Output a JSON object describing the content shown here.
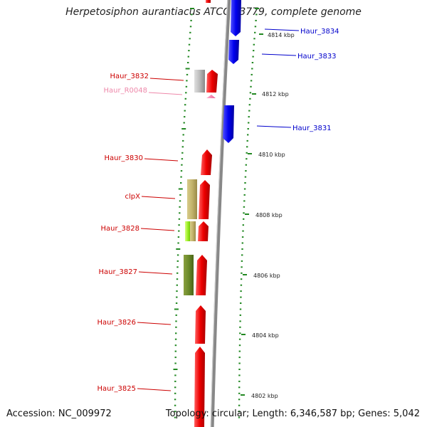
{
  "title": "Herpetosiphon aurantiacus ATCC 23779, complete genome",
  "footer": {
    "accession": "Accession: NC_009972",
    "topology": "Topology: circular; Length: 6,346,587 bp; Genes: 5,042"
  },
  "colors": {
    "forward": "#ee0000",
    "reverse": "#0000ee",
    "rna": "#ff88bb",
    "tick": "#228822",
    "backbone": "#888888"
  },
  "ticks": [
    {
      "label": "4814 kbp"
    },
    {
      "label": "4812 kbp"
    },
    {
      "label": "4810 kbp"
    },
    {
      "label": "4808 kbp"
    },
    {
      "label": "4806 kbp"
    },
    {
      "label": "4804 kbp"
    },
    {
      "label": "4802 kbp"
    }
  ],
  "left_labels": [
    {
      "name": "Haur_3832",
      "color": "#cc0000"
    },
    {
      "name": "Haur_R0048",
      "color": "#ee88aa"
    },
    {
      "name": "Haur_3830",
      "color": "#cc0000"
    },
    {
      "name": "clpX",
      "color": "#cc0000"
    },
    {
      "name": "Haur_3828",
      "color": "#cc0000"
    },
    {
      "name": "Haur_3827",
      "color": "#cc0000"
    },
    {
      "name": "Haur_3826",
      "color": "#cc0000"
    },
    {
      "name": "Haur_3825",
      "color": "#cc0000"
    }
  ],
  "right_labels": [
    {
      "name": "Haur_3834",
      "color": "#0000cc"
    },
    {
      "name": "Haur_3833",
      "color": "#0000cc"
    },
    {
      "name": "Haur_3831",
      "color": "#0000cc"
    }
  ]
}
